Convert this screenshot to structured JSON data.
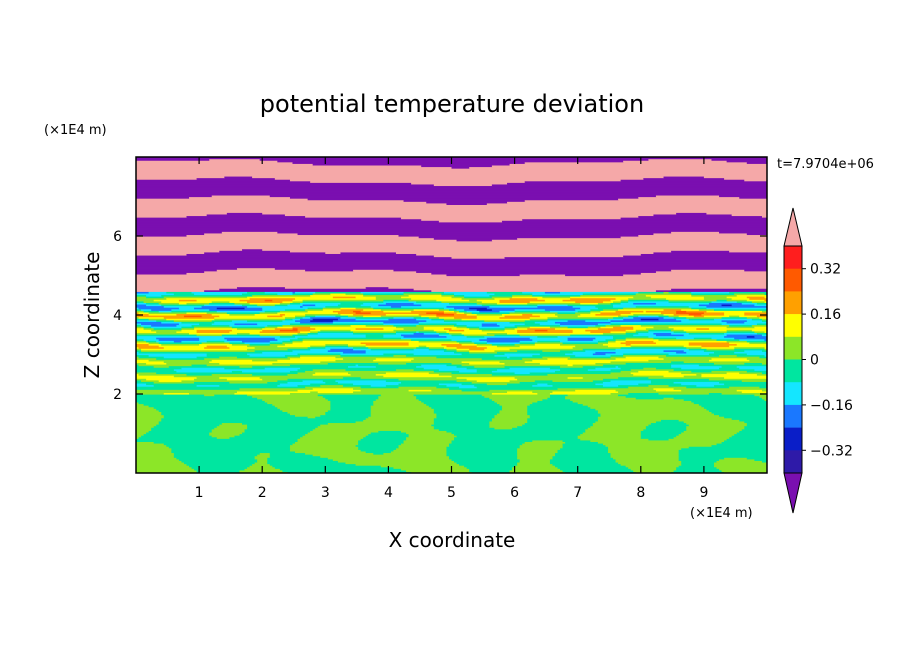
{
  "chart_data": {
    "type": "heatmap",
    "title": "potential temperature deviation",
    "xlabel": "X coordinate",
    "ylabel": "Z coordinate",
    "x_unit": "(×1E4 m)",
    "y_unit": "(×1E4 m)",
    "time_label": "t=7.9704e+06",
    "xlim": [
      0,
      10
    ],
    "ylim": [
      0,
      8
    ],
    "x_ticks": [
      "1",
      "2",
      "3",
      "4",
      "5",
      "6",
      "7",
      "8",
      "9"
    ],
    "y_ticks": [
      "2",
      "4",
      "6"
    ],
    "colorbar": {
      "levels": [
        -0.4,
        -0.32,
        -0.24,
        -0.16,
        -0.08,
        0,
        0.08,
        0.16,
        0.24,
        0.32,
        0.4
      ],
      "tick_labels": [
        "0.32",
        "0.16",
        "0",
        "−0.16",
        "−0.32"
      ],
      "colors": [
        "#7a0fb0",
        "#2e1aa8",
        "#0a1ec8",
        "#1a78ff",
        "#14e6ff",
        "#00e6a0",
        "#8ce628",
        "#ffff00",
        "#ffa000",
        "#ff5a00",
        "#ff1e1e",
        "#f5a8a8"
      ],
      "extend": "both"
    },
    "grid": false
  }
}
